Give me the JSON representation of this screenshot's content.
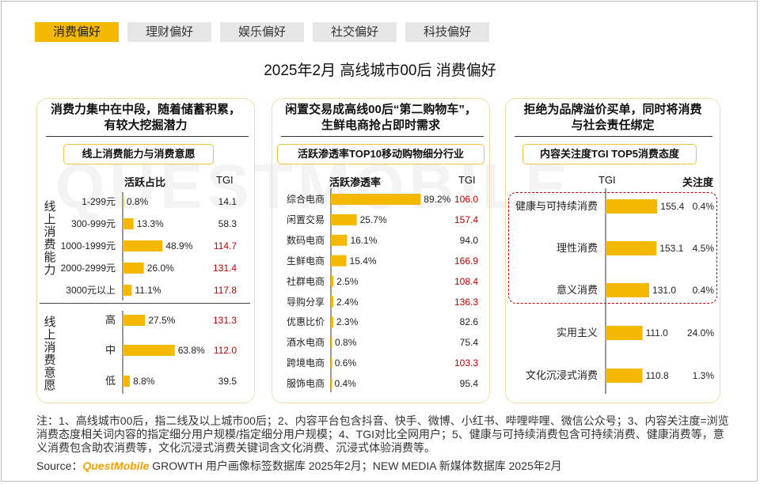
{
  "tabs": [
    {
      "label": "消费偏好",
      "active": true
    },
    {
      "label": "理财偏好",
      "active": false
    },
    {
      "label": "娱乐偏好",
      "active": false
    },
    {
      "label": "社交偏好",
      "active": false
    },
    {
      "label": "科技偏好",
      "active": false
    }
  ],
  "title": "2025年2月 高线城市00后 消费偏好",
  "watermark": "QUESTMOBILE",
  "colors": {
    "bar": "#f5b800",
    "accent": "#f5b800",
    "tgi_high": "#c00000"
  },
  "chart_data": [
    {
      "type": "bar",
      "heading": [
        "消费力集中在中段，随着储蓄积累，",
        "有较大挖掘潜力"
      ],
      "subtitle": "线上消费能力与消费意愿",
      "col_share": "活跃占比",
      "col_tgi": "TGI",
      "groups": [
        {
          "label": "线上消费能力",
          "categories": [
            "1-299元",
            "300-999元",
            "1000-1999元",
            "2000-2999元",
            "3000元以上"
          ],
          "share_labels": [
            "0.8%",
            "13.3%",
            "48.9%",
            "26.0%",
            "11.1%"
          ],
          "share": [
            0.8,
            13.3,
            48.9,
            26.0,
            11.1
          ],
          "tgi_labels": [
            "14.1",
            "58.3",
            "114.7",
            "131.4",
            "117.8"
          ],
          "tgi": [
            14.1,
            58.3,
            114.7,
            131.4,
            117.8
          ]
        },
        {
          "label": "线上消费意愿",
          "categories": [
            "高",
            "中",
            "低"
          ],
          "share_labels": [
            "27.5%",
            "63.8%",
            "8.8%"
          ],
          "share": [
            27.5,
            63.8,
            8.8
          ],
          "tgi_labels": [
            "131.3",
            "112.0",
            "39.5"
          ],
          "tgi": [
            131.3,
            112.0,
            39.5
          ]
        }
      ]
    },
    {
      "type": "bar",
      "heading": [
        "闲置交易成高线00后“第二购物车”，",
        "生鲜电商抢占即时需求"
      ],
      "subtitle": "活跃渗透率TOP10移动购物细分行业",
      "col_value": "活跃渗透率",
      "col_tgi": "TGI",
      "categories": [
        "综合电商",
        "闲置交易",
        "数码电商",
        "生鲜电商",
        "社群电商",
        "导购分享",
        "优惠比价",
        "酒水电商",
        "跨境电商",
        "服饰电商"
      ],
      "value_labels": [
        "89.2%",
        "25.7%",
        "16.1%",
        "15.4%",
        "2.5%",
        "2.4%",
        "2.3%",
        "0.8%",
        "0.6%",
        "0.4%"
      ],
      "values": [
        89.2,
        25.7,
        16.1,
        15.4,
        2.5,
        2.4,
        2.3,
        0.8,
        0.6,
        0.4
      ],
      "tgi_labels": [
        "106.0",
        "157.4",
        "94.0",
        "166.9",
        "108.4",
        "136.3",
        "82.6",
        "75.4",
        "103.3",
        "95.4"
      ],
      "tgi": [
        106.0,
        157.4,
        94.0,
        166.9,
        108.4,
        136.3,
        82.6,
        75.4,
        103.3,
        95.4
      ]
    },
    {
      "type": "bar",
      "heading": [
        "拒绝为品牌溢价买单，同时将消费",
        "与社会责任绑定"
      ],
      "subtitle": "内容关注度TGI TOP5消费态度",
      "col_tgi": "TGI",
      "col_attention": "关注度",
      "categories": [
        "健康与可持续消费",
        "理性消费",
        "意义消费",
        "实用主义",
        "文化沉浸式消费"
      ],
      "tgi_labels": [
        "155.4",
        "153.1",
        "131.0",
        "111.0",
        "110.8"
      ],
      "tgi": [
        155.4,
        153.1,
        131.0,
        111.0,
        110.8
      ],
      "attention_labels": [
        "0.4%",
        "4.5%",
        "0.4%",
        "24.0%",
        "1.3%"
      ],
      "attention": [
        0.4,
        4.5,
        0.4,
        24.0,
        1.3
      ],
      "highlighted_count": 3
    }
  ],
  "note": "注：1、高线城市00后，指二线及以上城市00后；2、内容平台包含抖音、快手、微博、小红书、哔哩哔哩、微信公众号；3、内容关注度=浏览消费态度相关词内容的指定细分用户规模/指定细分用户规模；4、TGI对比全网用户；5、健康与可持续消费包含可持续消费、健康消费等，意义消费包含助农消费等，文化沉浸式消费关键词含文化消费、沉浸式体验消费等。",
  "source": {
    "prefix": "Source：",
    "brand": "QuestMobile",
    "text": " GROWTH 用户画像标签数据库 2025年2月；NEW MEDIA 新媒体数据库 2025年2月"
  }
}
